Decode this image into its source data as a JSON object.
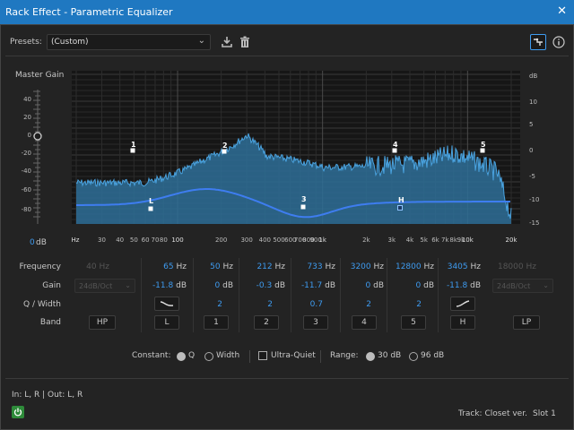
{
  "window": {
    "title": "Rack Effect - Parametric Equalizer",
    "close_glyph": "✕"
  },
  "presets": {
    "label": "Presets:",
    "value": "(Custom)"
  },
  "master_gain": {
    "label": "Master Gain",
    "value": "0",
    "unit": "dB",
    "ticks": [
      "40",
      "20",
      "0",
      "-20",
      "-40",
      "-60",
      "-80"
    ]
  },
  "graph": {
    "db_ticks": [
      "dB",
      "10",
      "5",
      "0",
      "-5",
      "-10",
      "-15"
    ],
    "freq_ticks": [
      "Hz",
      "30",
      "40",
      "50",
      "60",
      "70",
      "80",
      "100",
      "200",
      "300",
      "400",
      "500",
      "600",
      "700",
      "800",
      "900",
      "1k",
      "2k",
      "3k",
      "4k",
      "5k",
      "6k",
      "7k",
      "8k",
      "9k",
      "10k",
      "20k"
    ],
    "markers": [
      "1",
      "2",
      "3",
      "4",
      "5",
      "L",
      "H"
    ],
    "colors": {
      "curve": "#3e7df0",
      "spectrum": "#2e6e98",
      "spectrum_peak": "#4aa3e0"
    }
  },
  "rows": {
    "frequency": "Frequency",
    "gain": "Gain",
    "q_width": "Q / Width",
    "band": "Band"
  },
  "bands": {
    "hp": {
      "freq": "40",
      "unit": "Hz",
      "gain_select": "24dB/Oct",
      "button": "HP"
    },
    "l": {
      "freq": "65",
      "unit": "Hz",
      "gain": "-11.8",
      "gain_unit": "dB",
      "button": "L"
    },
    "b1": {
      "freq": "50",
      "unit": "Hz",
      "gain": "0",
      "gain_unit": "dB",
      "q": "2",
      "button": "1"
    },
    "b2": {
      "freq": "212",
      "unit": "Hz",
      "gain": "-0.3",
      "gain_unit": "dB",
      "q": "2",
      "button": "2"
    },
    "b3": {
      "freq": "733",
      "unit": "Hz",
      "gain": "-11.7",
      "gain_unit": "dB",
      "q": "0.7",
      "button": "3"
    },
    "b4": {
      "freq": "3200",
      "unit": "Hz",
      "gain": "0",
      "gain_unit": "dB",
      "q": "2",
      "button": "4"
    },
    "b5": {
      "freq": "12800",
      "unit": "Hz",
      "gain": "0",
      "gain_unit": "dB",
      "q": "2",
      "button": "5"
    },
    "h": {
      "freq": "3405",
      "unit": "Hz",
      "gain": "-11.8",
      "gain_unit": "dB",
      "button": "H"
    },
    "lp": {
      "freq": "18000",
      "unit": "Hz",
      "gain_select": "24dB/Oct",
      "button": "LP"
    }
  },
  "options": {
    "constant_label": "Constant:",
    "q_label": "Q",
    "width_label": "Width",
    "ultra_quiet_label": "Ultra-Quiet",
    "range_label": "Range:",
    "range_30": "30 dB",
    "range_96": "96 dB"
  },
  "footer": {
    "io": "In: L, R | Out: L, R",
    "track": "Track: Closet ver.",
    "slot": "Slot 1"
  }
}
